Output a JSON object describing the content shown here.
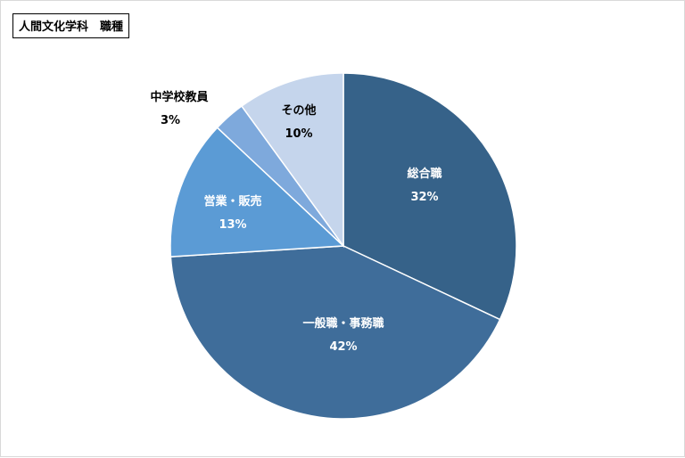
{
  "chart_data": {
    "type": "pie",
    "title": "人間文化学科　職種",
    "slices": [
      {
        "label": "総合職",
        "value": 32,
        "value_label": "32%",
        "color": "#366289"
      },
      {
        "label": "一般職・事務職",
        "value": 42,
        "value_label": "42%",
        "color": "#3f6d9a"
      },
      {
        "label": "営業・販売",
        "value": 13,
        "value_label": "13%",
        "color": "#5b9bd5"
      },
      {
        "label": "中学校教員",
        "value": 3,
        "value_label": "3%",
        "color": "#7ea9dc"
      },
      {
        "label": "その他",
        "value": 10,
        "value_label": "10%",
        "color": "#c5d5ec"
      }
    ],
    "label_colors": {
      "dark": "#ffffff",
      "light": "#000000"
    },
    "start": "12 o'clock, clockwise",
    "legend": "none"
  }
}
